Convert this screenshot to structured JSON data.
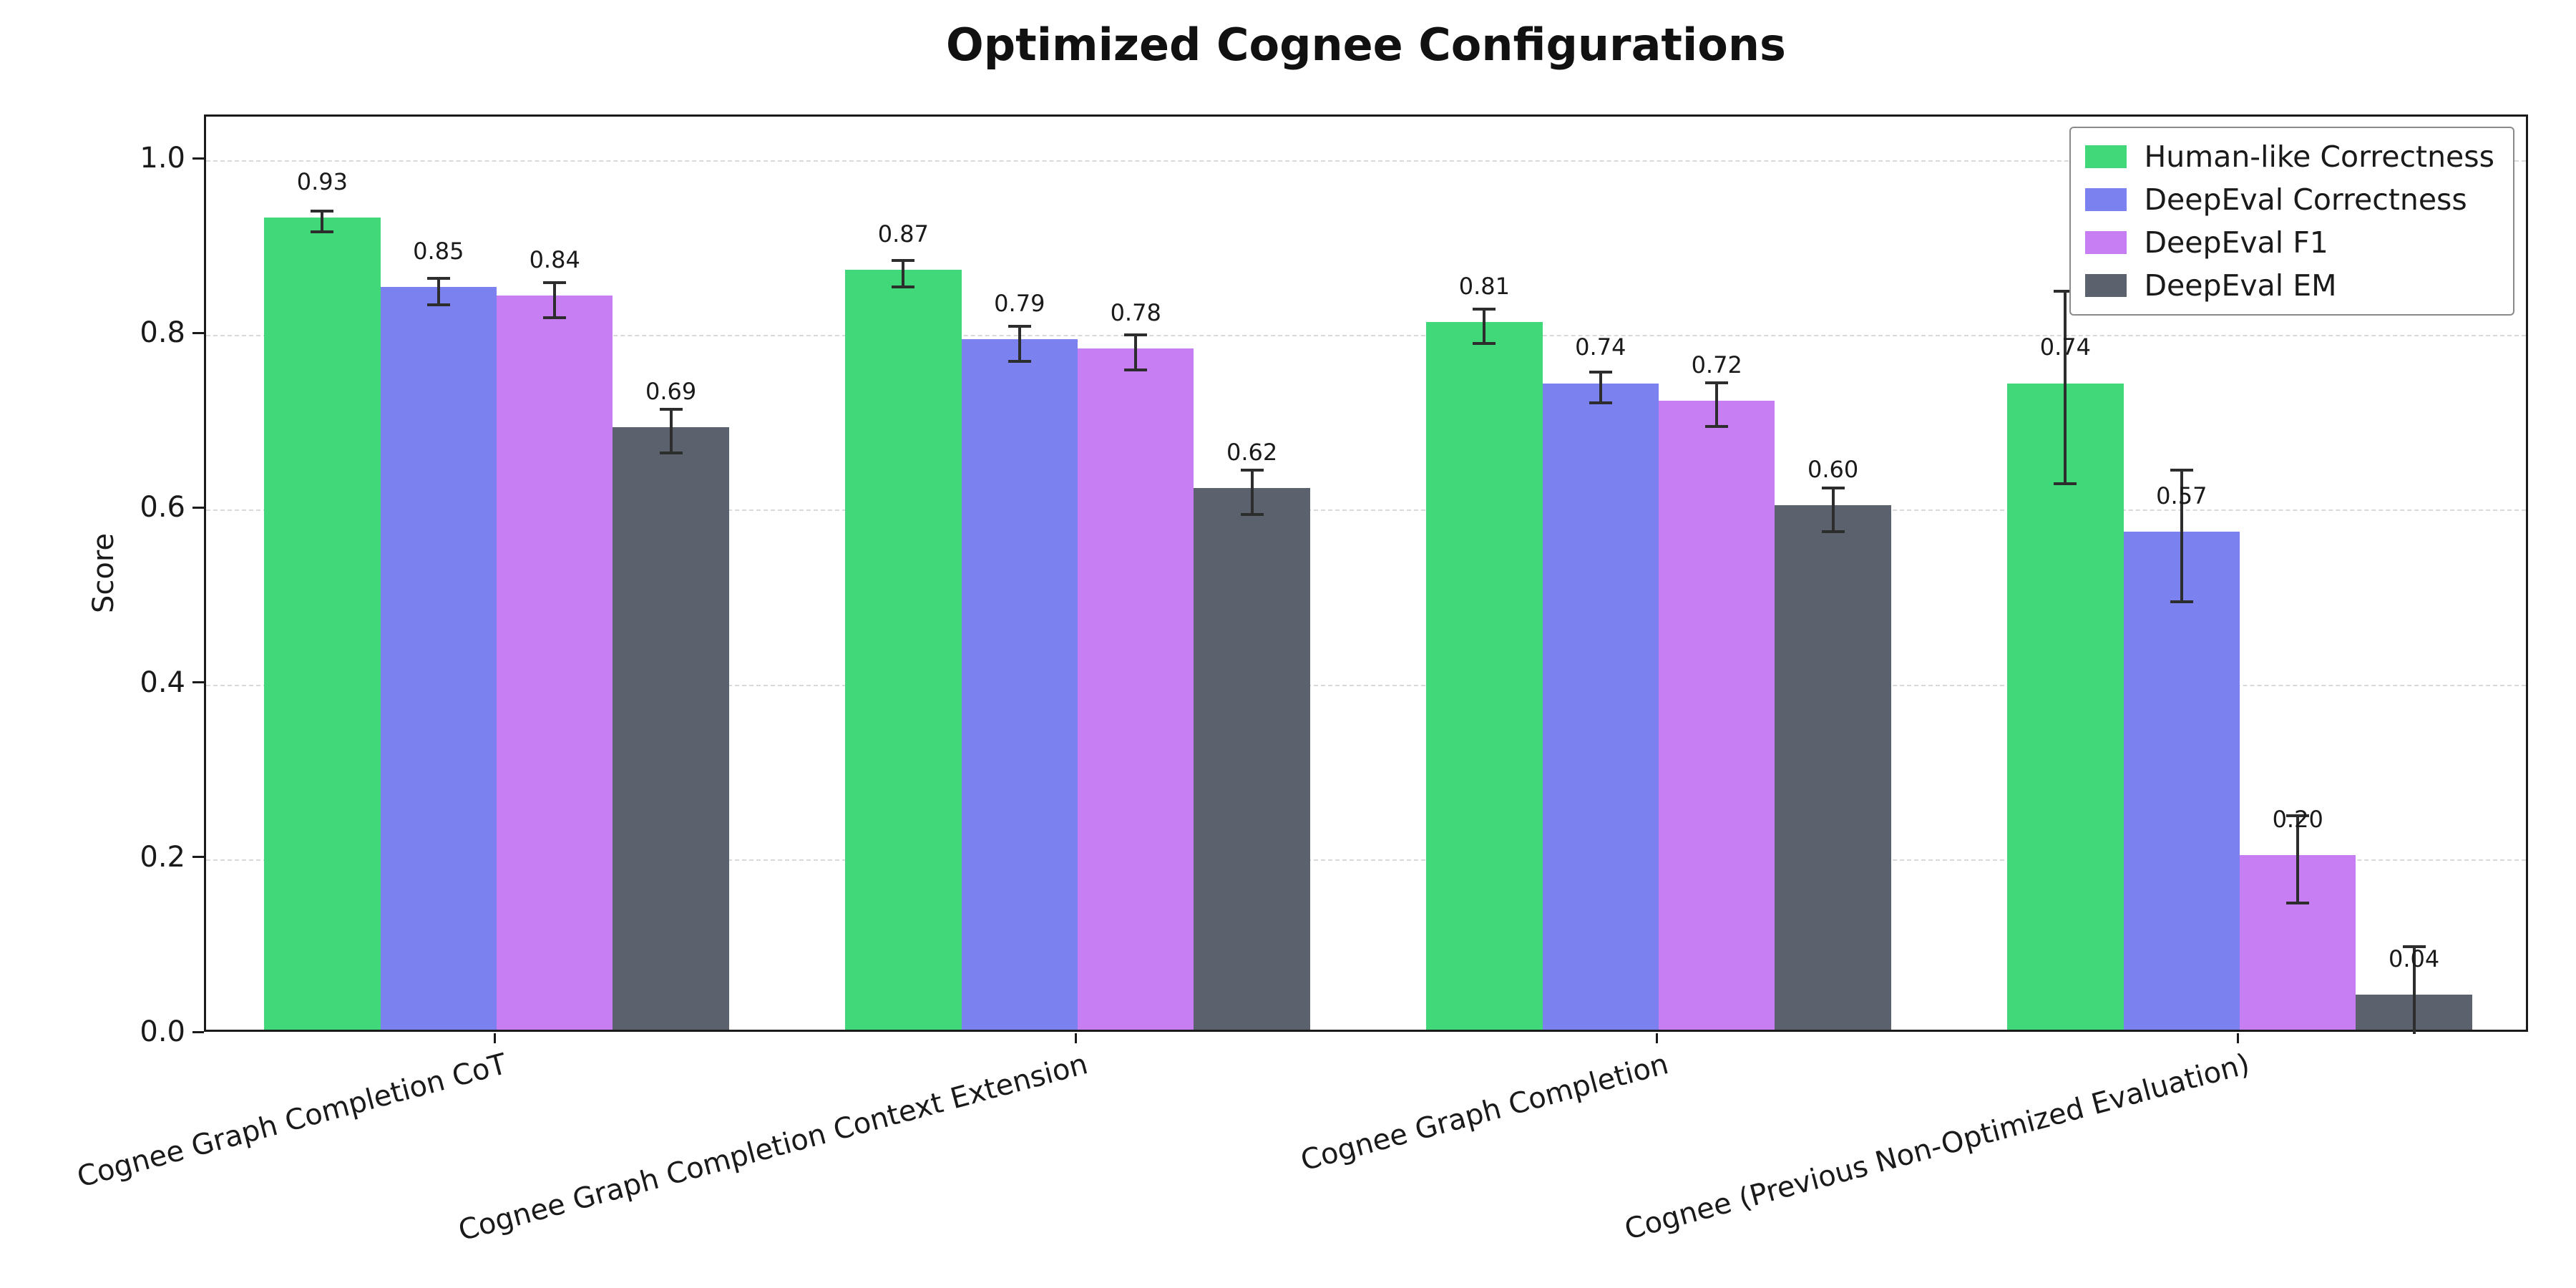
{
  "chart_data": {
    "type": "bar",
    "title": "Optimized Cognee Configurations",
    "xlabel": "",
    "ylabel": "Score",
    "ylim": [
      0,
      1.05
    ],
    "yticks": [
      0.0,
      0.2,
      0.4,
      0.6,
      0.8,
      1.0
    ],
    "ytick_labels": [
      "0.0",
      "0.2",
      "0.4",
      "0.6",
      "0.8",
      "1.0"
    ],
    "grid": "dashed horizontal gridlines",
    "legend_position": "upper right",
    "error_bars": true,
    "categories": [
      "Cognee Graph Completion CoT",
      "Cognee Graph Completion Context Extension",
      "Cognee Graph Completion",
      "Cognee (Previous Non-Optimized Evaluation)"
    ],
    "series": [
      {
        "name": "Human-like Correctness",
        "color": "#41d87a",
        "values": [
          0.93,
          0.87,
          0.81,
          0.74
        ],
        "errors": [
          0.012,
          0.015,
          0.02,
          0.11
        ],
        "labels": [
          "0.93",
          "0.87",
          "0.81",
          "0.74"
        ]
      },
      {
        "name": "DeepEval Correctness",
        "color": "#7b82f0",
        "values": [
          0.85,
          0.79,
          0.74,
          0.57
        ],
        "errors": [
          0.015,
          0.02,
          0.018,
          0.075
        ],
        "labels": [
          "0.85",
          "0.79",
          "0.74",
          "0.57"
        ]
      },
      {
        "name": "DeepEval F1",
        "color": "#c67ef2",
        "values": [
          0.84,
          0.78,
          0.72,
          0.2
        ],
        "errors": [
          0.02,
          0.02,
          0.025,
          0.05
        ],
        "labels": [
          "0.84",
          "0.78",
          "0.72",
          "0.20"
        ]
      },
      {
        "name": "DeepEval EM",
        "color": "#5b616d",
        "values": [
          0.69,
          0.62,
          0.6,
          0.04
        ],
        "errors": [
          0.025,
          0.025,
          0.025,
          0.06
        ],
        "labels": [
          "0.69",
          "0.62",
          "0.60",
          "0.04"
        ]
      }
    ]
  }
}
